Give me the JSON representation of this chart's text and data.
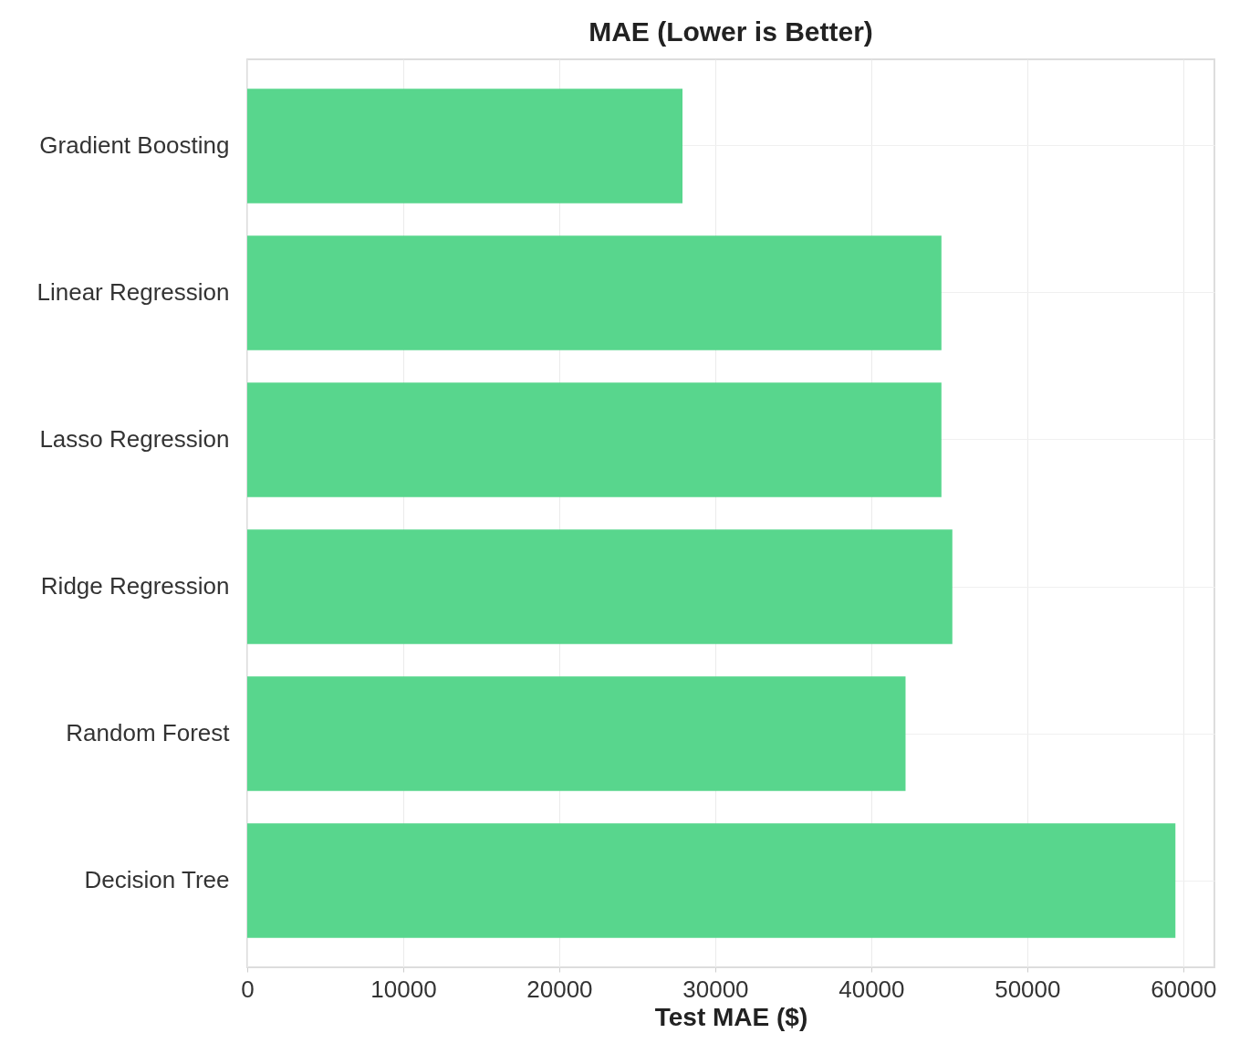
{
  "chart_data": {
    "type": "bar",
    "orientation": "horizontal",
    "title": "MAE (Lower is Better)",
    "xlabel": "Test MAE ($)",
    "categories": [
      "Gradient Boosting",
      "Linear Regression",
      "Lasso Regression",
      "Ridge Regression",
      "Random Forest",
      "Decision Tree"
    ],
    "values": [
      27900,
      44500,
      44500,
      45200,
      42200,
      59500
    ],
    "color": "#58d68d",
    "xlim": [
      0,
      62000
    ],
    "xticks": [
      0,
      10000,
      20000,
      30000,
      40000,
      50000,
      60000
    ],
    "grid": true
  }
}
